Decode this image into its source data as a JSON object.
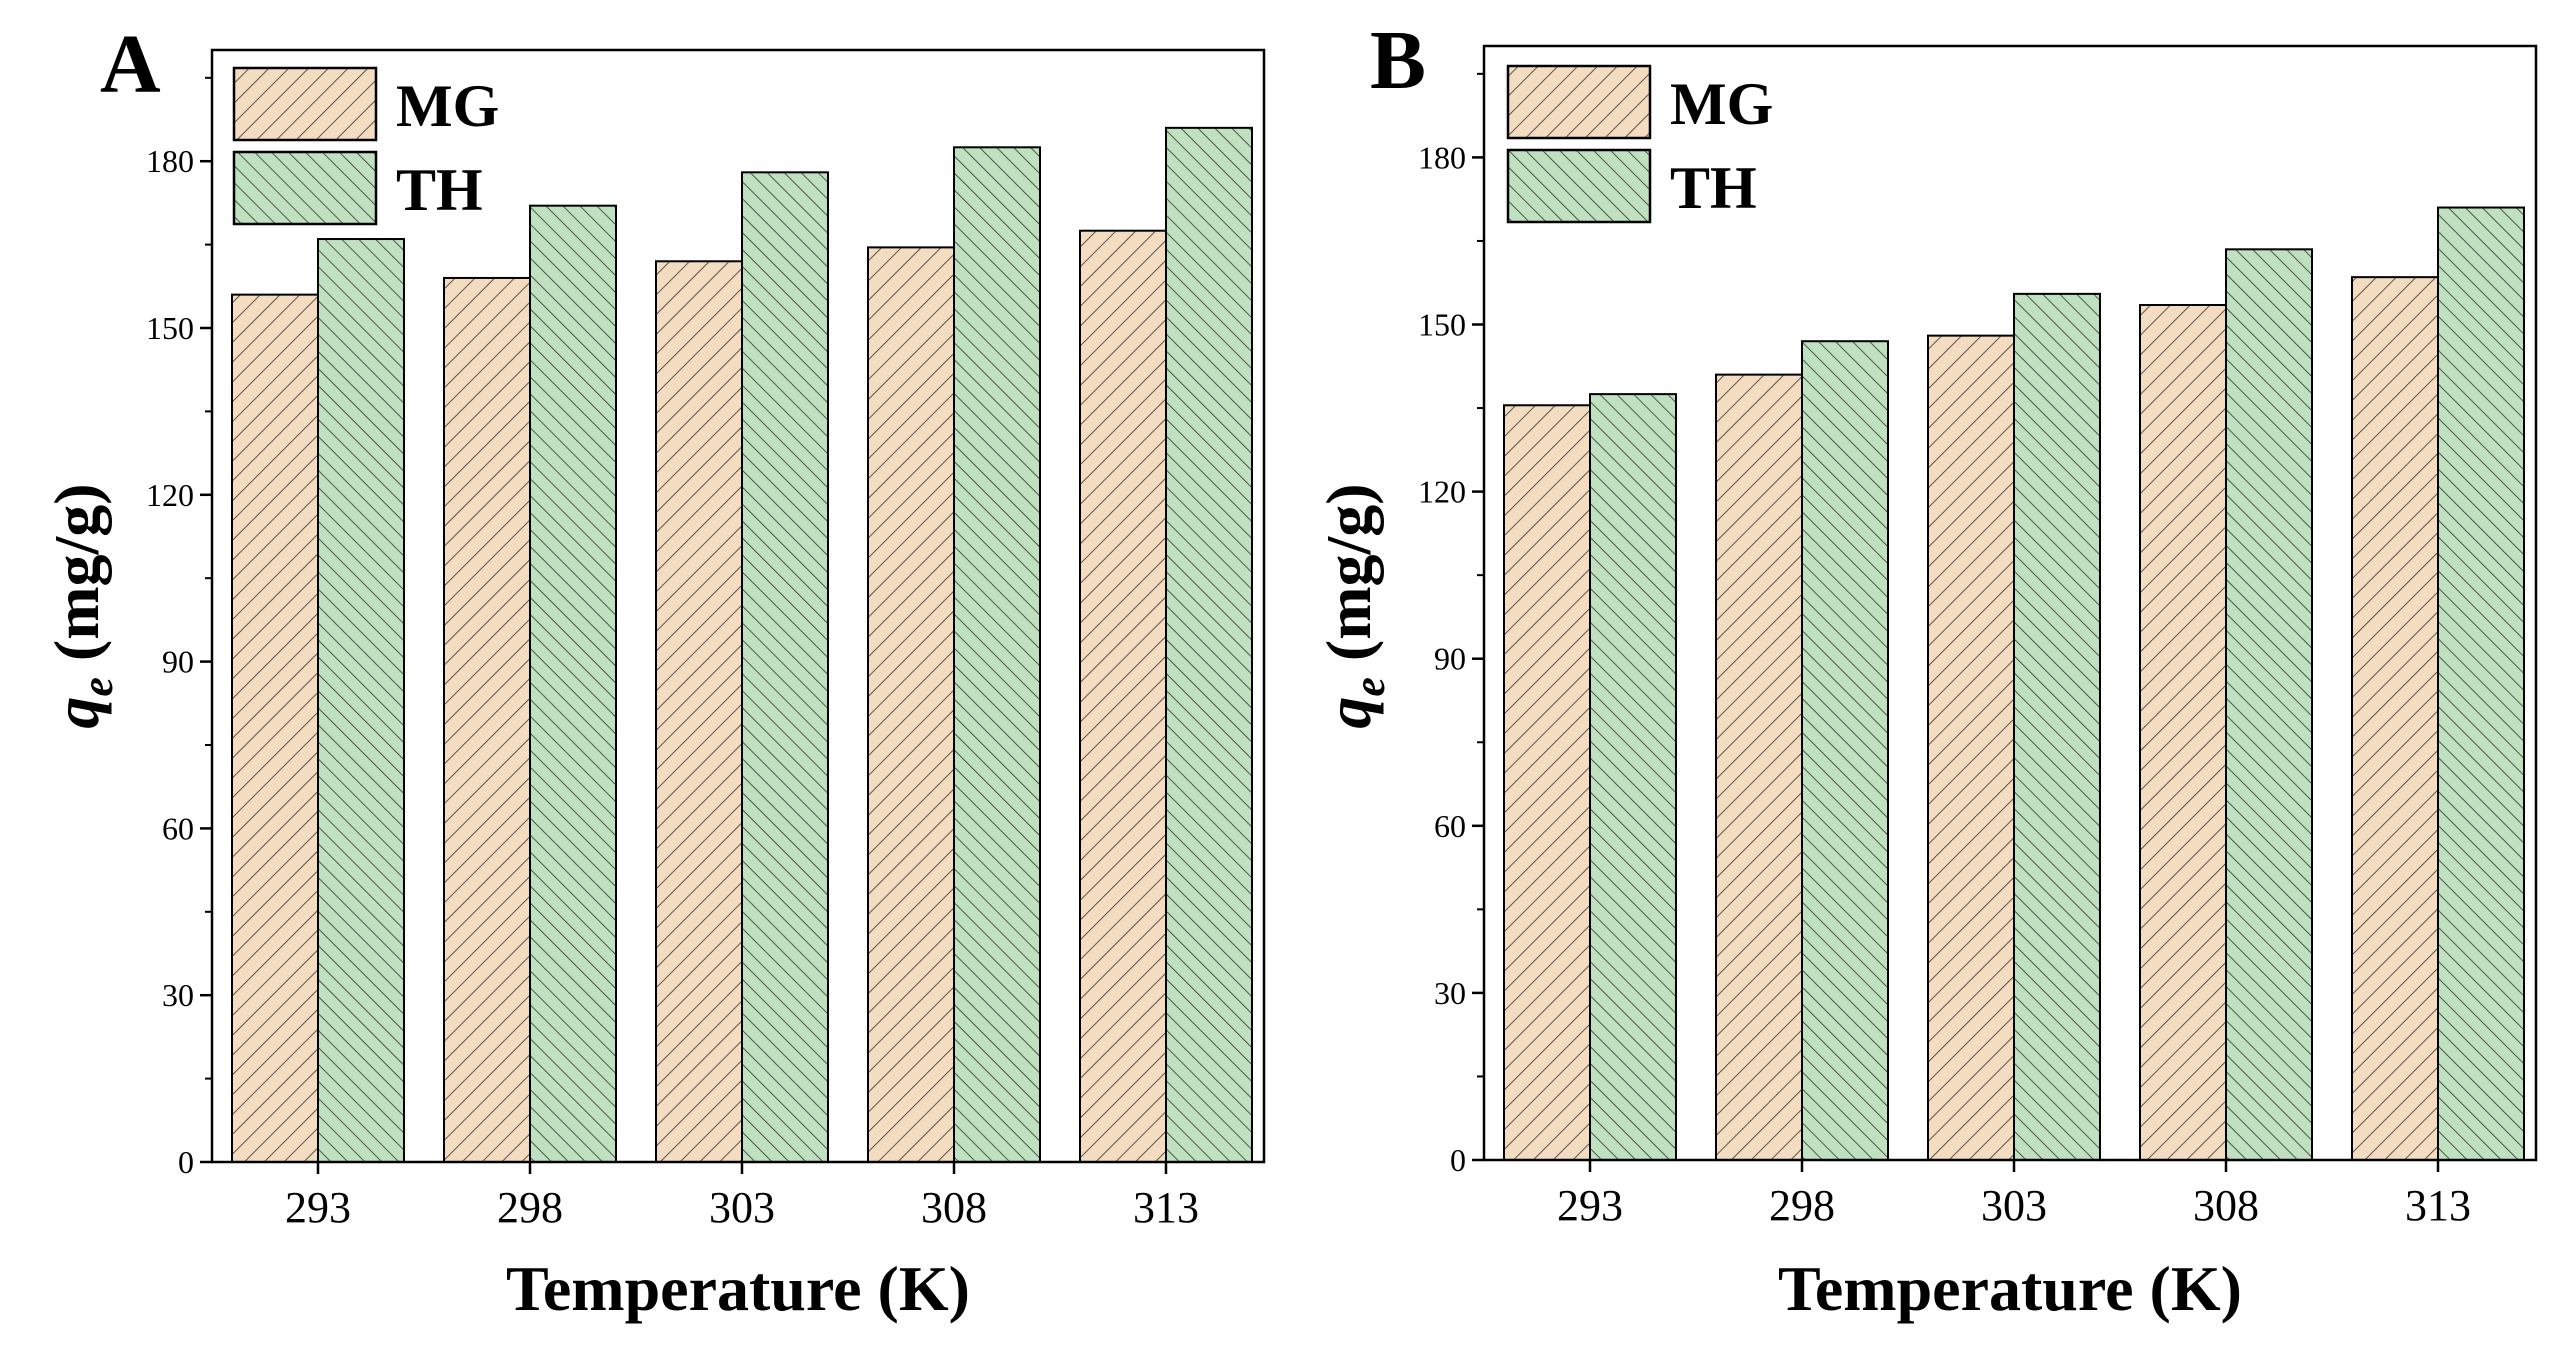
{
  "chart_data": [
    {
      "type": "bar",
      "panel_label": "A",
      "categories": [
        "293",
        "298",
        "303",
        "308",
        "313"
      ],
      "series": [
        {
          "name": "MG",
          "values": [
            156,
            159,
            162,
            164.5,
            167.5
          ]
        },
        {
          "name": "TH",
          "values": [
            166,
            172,
            178,
            182.5,
            186
          ]
        }
      ],
      "xlabel": "Temperature (K)",
      "ylabel_main": "q",
      "ylabel_sub": "e",
      "ylabel_rest": " (mg/g)",
      "ylim": [
        0,
        200
      ],
      "yticks": [
        "0",
        "30",
        "60",
        "90",
        "120",
        "150",
        "180"
      ],
      "legend_position": "top-left",
      "grid": false
    },
    {
      "type": "bar",
      "panel_label": "B",
      "categories": [
        "293",
        "298",
        "303",
        "308",
        "313"
      ],
      "series": [
        {
          "name": "MG",
          "values": [
            135.5,
            141,
            148,
            153.5,
            158.5
          ]
        },
        {
          "name": "TH",
          "values": [
            137.5,
            147,
            155.5,
            163.5,
            171
          ]
        }
      ],
      "xlabel": "Temperature (K)",
      "ylabel_main": "q",
      "ylabel_sub": "e",
      "ylabel_rest": " (mg/g)",
      "ylim": [
        0,
        200
      ],
      "yticks": [
        "0",
        "30",
        "60",
        "90",
        "120",
        "150",
        "180"
      ],
      "legend_position": "top-left",
      "grid": false
    }
  ],
  "colors": {
    "MG": "#f3dcc0",
    "TH": "#bfe1bf",
    "hatch": "#333333",
    "axis": "#000000"
  }
}
